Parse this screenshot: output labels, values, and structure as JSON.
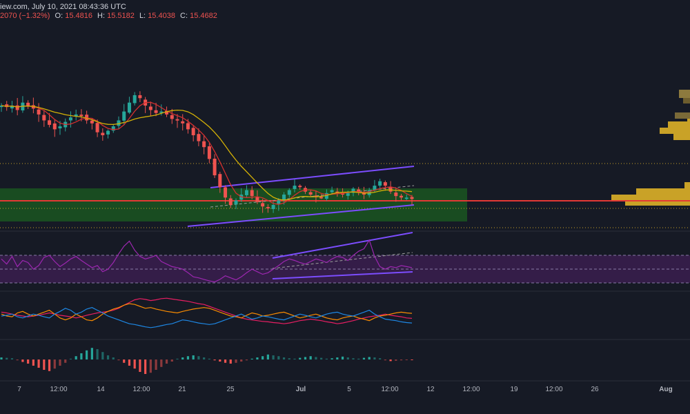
{
  "header": {
    "line1": "iew.com, July 10, 2021 08:43:36 UTC",
    "change": "2070 (−1.32%)",
    "o_label": "O:",
    "o_value": "15.4816",
    "h_label": "H:",
    "h_value": "15.5182",
    "l_label": "L:",
    "l_value": "15.4038",
    "c_label": "C:",
    "c_value": "15.4682"
  },
  "colors": {
    "background": "#161a25",
    "candle_up": "#26a69a",
    "candle_down": "#ef5350",
    "ma_fast": "#d32f2f",
    "ma_slow": "#d4b106",
    "channel": "#7c4dff",
    "zone": "#1b5e20",
    "poc_line": "#e53935",
    "volume_profile": "#c9a227",
    "rsi_fill": "#3a1f4f",
    "rsi_line": "#9c27b0",
    "dmi_plus": "#1e88e5",
    "dmi_minus": "#fb8c00",
    "adx": "#e91e63",
    "hist_up": "#26a69a",
    "hist_down": "#ef5350"
  },
  "chart_data": {
    "type": "candlestick",
    "symbol_info": "July 10, 2021 08:43:36 UTC",
    "ohlc_last": {
      "open": 15.4816,
      "high": 15.5182,
      "low": 15.4038,
      "close": 15.4682,
      "change_pct": -1.32
    },
    "x_axis": {
      "tick_labels": [
        "7",
        "12:00",
        "14",
        "12:00",
        "21",
        "25",
        "Jul",
        "5",
        "12:00",
        "12",
        "12:00",
        "19",
        "12:00",
        "26",
        "Aug"
      ],
      "bold_ticks": [
        "Jul",
        "Aug"
      ]
    },
    "price_panel": {
      "price_series_normalized": [
        0.8,
        0.79,
        0.8,
        0.77,
        0.82,
        0.8,
        0.78,
        0.74,
        0.7,
        0.67,
        0.64,
        0.66,
        0.69,
        0.72,
        0.74,
        0.73,
        0.7,
        0.68,
        0.62,
        0.6,
        0.63,
        0.66,
        0.7,
        0.76,
        0.82,
        0.87,
        0.85,
        0.8,
        0.77,
        0.75,
        0.76,
        0.74,
        0.71,
        0.7,
        0.68,
        0.64,
        0.6,
        0.56,
        0.52,
        0.44,
        0.33,
        0.25,
        0.18,
        0.13,
        0.16,
        0.2,
        0.23,
        0.19,
        0.15,
        0.12,
        0.11,
        0.13,
        0.16,
        0.2,
        0.23,
        0.26,
        0.25,
        0.22,
        0.2,
        0.19,
        0.18,
        0.21,
        0.23,
        0.22,
        0.2,
        0.21,
        0.24,
        0.22,
        0.2,
        0.23,
        0.26,
        0.29,
        0.26,
        0.22,
        0.19,
        0.18,
        0.18,
        0.17
      ],
      "volume_profile_levels": [
        "upper cluster",
        "zone cluster"
      ],
      "annotations": [
        "ascending channel",
        "support zone",
        "point of control line"
      ]
    },
    "rsi_panel": {
      "series_normalized": [
        0.55,
        0.45,
        0.6,
        0.4,
        0.52,
        0.48,
        0.35,
        0.42,
        0.58,
        0.62,
        0.5,
        0.4,
        0.47,
        0.55,
        0.6,
        0.52,
        0.45,
        0.38,
        0.42,
        0.3,
        0.35,
        0.48,
        0.65,
        0.8,
        0.9,
        0.72,
        0.6,
        0.55,
        0.58,
        0.62,
        0.5,
        0.45,
        0.4,
        0.38,
        0.35,
        0.28,
        0.2,
        0.18,
        0.15,
        0.12,
        0.1,
        0.15,
        0.22,
        0.18,
        0.14,
        0.2,
        0.28,
        0.35,
        0.3,
        0.25,
        0.28,
        0.35,
        0.42,
        0.5,
        0.55,
        0.52,
        0.48,
        0.45,
        0.5,
        0.55,
        0.52,
        0.48,
        0.55,
        0.6,
        0.58,
        0.52,
        0.62,
        0.7,
        0.75,
        0.92,
        0.6,
        0.4,
        0.35,
        0.4,
        0.38,
        0.42,
        0.4,
        0.38
      ]
    },
    "dmi_panel": {
      "plus_di": [
        0.5,
        0.52,
        0.55,
        0.48,
        0.45,
        0.5,
        0.55,
        0.52,
        0.48,
        0.45,
        0.55,
        0.62,
        0.7,
        0.65,
        0.55,
        0.6,
        0.68,
        0.72,
        0.65,
        0.58,
        0.5,
        0.45,
        0.4,
        0.35,
        0.3,
        0.28,
        0.25,
        0.22,
        0.2,
        0.22,
        0.25,
        0.28,
        0.3,
        0.35,
        0.4,
        0.38,
        0.35,
        0.32,
        0.3,
        0.28,
        0.3,
        0.35,
        0.4,
        0.45,
        0.5,
        0.55,
        0.48,
        0.42,
        0.45,
        0.5,
        0.48,
        0.45,
        0.42,
        0.4,
        0.45,
        0.5,
        0.55,
        0.52,
        0.48,
        0.45,
        0.5,
        0.55,
        0.58,
        0.6,
        0.55,
        0.52,
        0.5,
        0.55,
        0.6,
        0.65,
        0.55,
        0.48,
        0.42,
        0.4,
        0.38,
        0.35,
        0.33,
        0.32
      ],
      "minus_di": [
        0.55,
        0.5,
        0.48,
        0.58,
        0.62,
        0.55,
        0.5,
        0.55,
        0.6,
        0.65,
        0.55,
        0.45,
        0.4,
        0.45,
        0.55,
        0.48,
        0.4,
        0.38,
        0.45,
        0.55,
        0.62,
        0.68,
        0.72,
        0.78,
        0.82,
        0.8,
        0.75,
        0.7,
        0.72,
        0.68,
        0.65,
        0.62,
        0.6,
        0.58,
        0.62,
        0.65,
        0.68,
        0.7,
        0.72,
        0.7,
        0.65,
        0.6,
        0.55,
        0.5,
        0.48,
        0.45,
        0.52,
        0.58,
        0.55,
        0.5,
        0.52,
        0.55,
        0.58,
        0.6,
        0.55,
        0.5,
        0.45,
        0.48,
        0.52,
        0.55,
        0.5,
        0.45,
        0.42,
        0.4,
        0.45,
        0.48,
        0.5,
        0.45,
        0.42,
        0.38,
        0.45,
        0.5,
        0.52,
        0.55,
        0.58,
        0.6,
        0.58,
        0.57
      ],
      "adx": [
        0.6,
        0.58,
        0.55,
        0.52,
        0.5,
        0.48,
        0.5,
        0.52,
        0.55,
        0.58,
        0.55,
        0.52,
        0.5,
        0.48,
        0.45,
        0.48,
        0.52,
        0.55,
        0.58,
        0.6,
        0.62,
        0.65,
        0.7,
        0.78,
        0.85,
        0.92,
        0.95,
        0.93,
        0.9,
        0.92,
        0.95,
        0.96,
        0.94,
        0.92,
        0.9,
        0.88,
        0.85,
        0.82,
        0.8,
        0.75,
        0.7,
        0.65,
        0.6,
        0.55,
        0.5,
        0.45,
        0.42,
        0.4,
        0.38,
        0.36,
        0.35,
        0.33,
        0.32,
        0.3,
        0.32,
        0.35,
        0.38,
        0.4,
        0.42,
        0.4,
        0.38,
        0.35,
        0.33,
        0.3,
        0.32,
        0.35,
        0.38,
        0.42,
        0.45,
        0.48,
        0.5,
        0.52,
        0.55,
        0.52,
        0.5,
        0.48,
        0.45,
        0.44
      ]
    },
    "histogram_panel": {
      "values": [
        0.05,
        0.04,
        0.03,
        -0.02,
        -0.06,
        -0.1,
        -0.15,
        -0.2,
        -0.25,
        -0.28,
        -0.22,
        -0.15,
        -0.08,
        0.02,
        0.08,
        0.15,
        0.22,
        0.28,
        0.25,
        0.18,
        0.1,
        0.05,
        -0.02,
        -0.08,
        -0.15,
        -0.22,
        -0.3,
        -0.35,
        -0.32,
        -0.25,
        -0.18,
        -0.1,
        -0.05,
        0.02,
        0.05,
        0.08,
        0.1,
        0.08,
        0.05,
        0.02,
        -0.02,
        -0.05,
        -0.08,
        -0.1,
        -0.08,
        -0.05,
        -0.02,
        0.02,
        0.05,
        0.08,
        0.12,
        0.1,
        0.08,
        0.05,
        0.03,
        0.02,
        0.04,
        0.06,
        0.08,
        0.06,
        0.04,
        0.02,
        0.03,
        0.05,
        0.07,
        0.05,
        0.03,
        0.02,
        0.04,
        0.06,
        0.05,
        0.03,
        -0.02,
        -0.04,
        -0.03,
        -0.02,
        -0.01,
        -0.01
      ]
    }
  }
}
